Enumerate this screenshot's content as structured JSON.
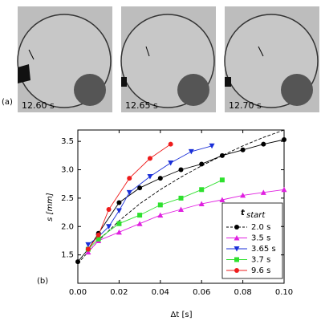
{
  "panel_a": {
    "label": "(a)",
    "frames": [
      "12.60 s",
      "12.65 s",
      "12.70 s"
    ]
  },
  "chart_data": {
    "type": "line",
    "panel_label": "(b)",
    "x_label": "Δt [s]",
    "y_label": "s [mm]",
    "xlim": [
      0,
      0.1
    ],
    "ylim": [
      1.0,
      3.7
    ],
    "xticks": [
      {
        "value": 0,
        "label": "0.00"
      },
      0.02,
      0.04,
      0.06,
      0.08,
      {
        "value": 0.1,
        "label": "0.10"
      }
    ],
    "yticks": [
      1.5,
      {
        "value": 2,
        "label": "2.0"
      },
      2.5,
      {
        "value": 3,
        "label": "3.0"
      },
      3.5
    ],
    "legend_title": "t",
    "legend_title_sub": "start",
    "legend_position": "lower right",
    "series": [
      {
        "name": "2.0 s",
        "color": "#000000",
        "marker": "circle",
        "x": [
          0,
          0.005,
          0.01,
          0.02,
          0.03,
          0.04,
          0.05,
          0.06,
          0.07,
          0.08,
          0.09,
          0.1
        ],
        "values": [
          1.38,
          1.6,
          1.88,
          2.42,
          2.68,
          2.85,
          3.0,
          3.1,
          3.25,
          3.35,
          3.45,
          3.53
        ]
      },
      {
        "name": "3.5 s",
        "color": "#e020e0",
        "marker": "triangle-up",
        "x": [
          0.005,
          0.01,
          0.02,
          0.03,
          0.04,
          0.05,
          0.06,
          0.07,
          0.08,
          0.09,
          0.1
        ],
        "values": [
          1.55,
          1.75,
          1.9,
          2.05,
          2.2,
          2.3,
          2.4,
          2.47,
          2.55,
          2.6,
          2.65
        ]
      },
      {
        "name": "3.65 s",
        "color": "#1a2fd8",
        "marker": "triangle-down",
        "x": [
          0.005,
          0.01,
          0.015,
          0.02,
          0.025,
          0.035,
          0.045,
          0.055,
          0.065
        ],
        "values": [
          1.68,
          1.82,
          2.0,
          2.28,
          2.6,
          2.88,
          3.12,
          3.32,
          3.42
        ]
      },
      {
        "name": "3.7 s",
        "color": "#2ee02e",
        "marker": "square",
        "x": [
          0.005,
          0.01,
          0.02,
          0.03,
          0.04,
          0.05,
          0.06,
          0.07
        ],
        "values": [
          1.6,
          1.78,
          2.05,
          2.2,
          2.38,
          2.5,
          2.65,
          2.82
        ]
      },
      {
        "name": "9.6 s",
        "color": "#ee1c1c",
        "marker": "circle",
        "x": [
          0.005,
          0.01,
          0.015,
          0.025,
          0.035,
          0.045
        ],
        "values": [
          1.6,
          1.85,
          2.3,
          2.85,
          3.2,
          3.45
        ]
      }
    ],
    "fit": {
      "color": "#000000",
      "x": [
        0,
        0.01,
        0.02,
        0.03,
        0.04,
        0.05,
        0.06,
        0.07,
        0.08,
        0.09,
        0.1
      ],
      "values": [
        1.35,
        1.75,
        2.1,
        2.4,
        2.65,
        2.87,
        3.07,
        3.25,
        3.42,
        3.57,
        3.7
      ]
    }
  }
}
